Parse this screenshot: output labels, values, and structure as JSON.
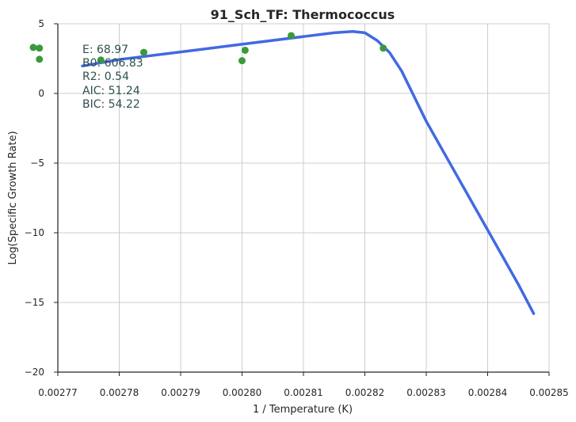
{
  "chart_data": {
    "type": "scatter",
    "title": "91_Sch_TF: Thermococcus",
    "xlabel": "1 / Temperature (K)",
    "ylabel": "Log(Specific Growth Rate)",
    "xlim": [
      0.00277,
      0.00285
    ],
    "ylim": [
      -20,
      5
    ],
    "xticks": [
      0.00277,
      0.00278,
      0.00279,
      0.0028,
      0.00281,
      0.00282,
      0.00283,
      0.00284,
      0.00285
    ],
    "xtick_labels": [
      "0.00277",
      "0.00278",
      "0.00279",
      "0.00280",
      "0.00281",
      "0.00282",
      "0.00283",
      "0.00284",
      "0.00285"
    ],
    "yticks": [
      -20,
      -15,
      -10,
      -5,
      0,
      5
    ],
    "ytick_labels": [
      "−20",
      "−15",
      "−10",
      "−5",
      "0",
      "5"
    ],
    "grid": true,
    "annotations": [
      "E: 68.97",
      "B0: 606.83",
      "R2:  0.54",
      "AIC: 51.24",
      "BIC: 54.22"
    ],
    "series": [
      {
        "kind": "points",
        "color": "#3a9a3a",
        "points": [
          {
            "x": 0.002766,
            "y": 3.3
          },
          {
            "x": 0.002767,
            "y": 3.25
          },
          {
            "x": 0.002767,
            "y": 2.45
          },
          {
            "x": 0.002777,
            "y": 2.4
          },
          {
            "x": 0.002784,
            "y": 2.95
          },
          {
            "x": 0.0028,
            "y": 2.35
          },
          {
            "x": 0.0028005,
            "y": 3.1
          },
          {
            "x": 0.002808,
            "y": 4.15
          },
          {
            "x": 0.002823,
            "y": 3.25
          }
        ]
      },
      {
        "kind": "line",
        "color": "#4169e1",
        "points": [
          {
            "x": 0.002774,
            "y": 1.97
          },
          {
            "x": 0.00278,
            "y": 2.43
          },
          {
            "x": 0.00279,
            "y": 2.98
          },
          {
            "x": 0.0028,
            "y": 3.53
          },
          {
            "x": 0.00281,
            "y": 4.08
          },
          {
            "x": 0.002815,
            "y": 4.35
          },
          {
            "x": 0.002818,
            "y": 4.45
          },
          {
            "x": 0.00282,
            "y": 4.35
          },
          {
            "x": 0.002822,
            "y": 3.8
          },
          {
            "x": 0.002824,
            "y": 2.95
          },
          {
            "x": 0.002826,
            "y": 1.6
          },
          {
            "x": 0.00283,
            "y": -2.0
          },
          {
            "x": 0.002835,
            "y": -5.9
          },
          {
            "x": 0.00284,
            "y": -9.8
          },
          {
            "x": 0.002845,
            "y": -13.7
          },
          {
            "x": 0.0028475,
            "y": -15.8
          }
        ]
      }
    ]
  }
}
